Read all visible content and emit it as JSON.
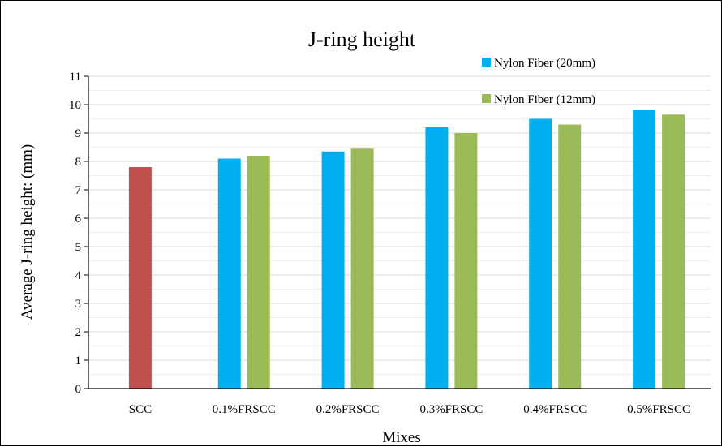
{
  "chart_data": {
    "type": "bar",
    "title": "J-ring height",
    "xlabel": "Mixes",
    "ylabel": "Average J-ring height: (mm)",
    "ylim": [
      0,
      11
    ],
    "yticks": [
      "0",
      "1",
      "2",
      "3",
      "4",
      "5",
      "6",
      "7",
      "8",
      "9",
      "10",
      "11"
    ],
    "grid": true,
    "legend_position": "top-right",
    "categories": [
      "SCC",
      "0.1%FRSCC",
      "0.2%FRSCC",
      "0.3%FRSCC",
      "0.4%FRSCC",
      "0.5%FRSCC"
    ],
    "series": [
      {
        "name": "",
        "color": "#c0504d",
        "values": [
          7.8,
          null,
          null,
          null,
          null,
          null
        ]
      },
      {
        "name": "Nylon Fiber (20mm)",
        "color": "#00b0f0",
        "values": [
          null,
          8.1,
          8.35,
          9.2,
          9.5,
          9.8
        ]
      },
      {
        "name": "Nylon Fiber (12mm)",
        "color": "#9bbb59",
        "values": [
          null,
          8.2,
          8.45,
          9.0,
          9.3,
          9.65
        ]
      }
    ]
  }
}
